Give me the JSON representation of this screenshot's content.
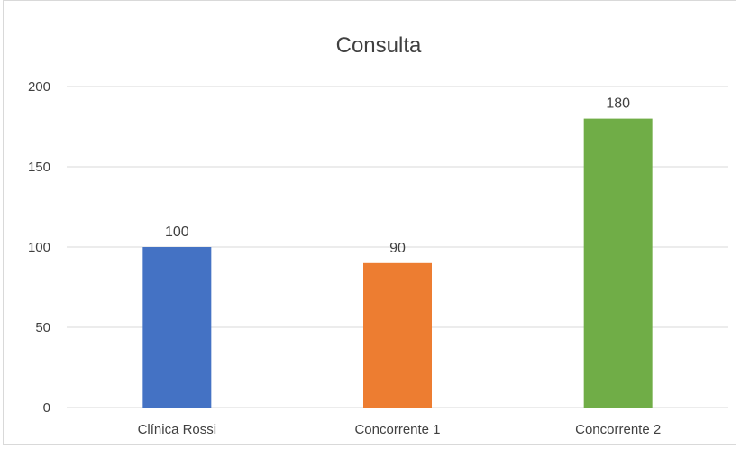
{
  "chart_data": {
    "type": "bar",
    "title": "Consulta",
    "categories": [
      "Clínica Rossi",
      "Concorrente 1",
      "Concorrente 2"
    ],
    "values": [
      100,
      90,
      180
    ],
    "data_labels": [
      "100",
      "90",
      "180"
    ],
    "colors": [
      "#4472c4",
      "#ed7d31",
      "#70ad47"
    ],
    "ylim": [
      0,
      200
    ],
    "yticks": [
      0,
      50,
      100,
      150,
      200
    ],
    "ytick_labels": [
      "0",
      "50",
      "100",
      "150",
      "200"
    ],
    "grid": true,
    "legend": "none",
    "xlabel": "",
    "ylabel": ""
  }
}
